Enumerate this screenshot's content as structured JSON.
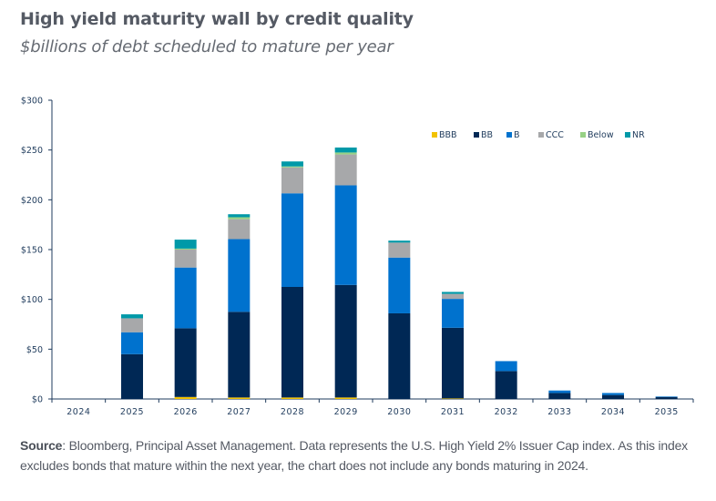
{
  "chart_data": {
    "type": "bar",
    "stacked": true,
    "title": "High yield maturity wall by credit quality",
    "subtitle": "$billions of debt scheduled to mature per year",
    "xlabel": "",
    "ylabel": "",
    "ylim": [
      0,
      300
    ],
    "yticks": [
      0,
      50,
      100,
      150,
      200,
      250,
      300
    ],
    "ytick_labels": [
      "$0",
      "$50",
      "$100",
      "$150",
      "$200",
      "$250",
      "$300"
    ],
    "grid": false,
    "legend_position": "top-right",
    "categories": [
      "2024",
      "2025",
      "2026",
      "2027",
      "2028",
      "2029",
      "2030",
      "2031",
      "2032",
      "2033",
      "2034",
      "2035"
    ],
    "series": [
      {
        "name": "BBB",
        "color": "#f2c200",
        "values": [
          0,
          0,
          2,
          1.5,
          1.5,
          1.5,
          0,
          0.5,
          0,
          0,
          0,
          0
        ]
      },
      {
        "name": "BB",
        "color": "#002855",
        "values": [
          0,
          45,
          69,
          86,
          111,
          113,
          86,
          71,
          28,
          6,
          4,
          2
        ]
      },
      {
        "name": "B",
        "color": "#0072ce",
        "values": [
          0,
          22,
          61,
          73,
          94,
          100,
          56,
          29,
          10,
          2.5,
          2,
          0.5
        ]
      },
      {
        "name": "CCC",
        "color": "#a7a8aa",
        "values": [
          0,
          14,
          18,
          20,
          26,
          31,
          15,
          5,
          0,
          0,
          0,
          0
        ]
      },
      {
        "name": "Below",
        "color": "#97d185",
        "values": [
          0,
          0,
          1,
          2,
          1,
          2,
          0,
          0,
          0,
          0,
          0,
          0
        ]
      },
      {
        "name": "NR",
        "color": "#0099a8",
        "values": [
          0,
          4,
          9,
          3,
          5,
          5,
          2,
          2,
          0,
          0,
          0,
          0
        ]
      }
    ]
  },
  "source": {
    "label": "Source",
    "text": ": Bloomberg, Principal Asset Management. Data represents the U.S. High Yield 2% Issuer Cap index. As this index excludes bonds that mature within the next year, the chart does not include any bonds maturing in 2024."
  },
  "colors": {
    "axis": "#1f3b5c",
    "title": "#555a64"
  }
}
